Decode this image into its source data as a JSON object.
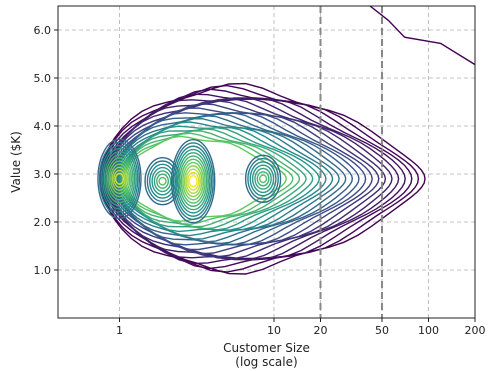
{
  "chart_data": {
    "type": "contour",
    "x_scale": "log",
    "xlim": [
      0.4,
      200
    ],
    "ylim": [
      0,
      6.5
    ],
    "xlabel": [
      "Customer Size",
      "(log scale)"
    ],
    "ylabel": "Value ($K)",
    "x_ticks": [
      {
        "value": 1,
        "label": "1"
      },
      {
        "value": 10,
        "label": "10"
      },
      {
        "value": 20,
        "label": "20"
      },
      {
        "value": 50,
        "label": "50"
      },
      {
        "value": 100,
        "label": "100"
      },
      {
        "value": 200,
        "label": "200"
      }
    ],
    "y_ticks": [
      {
        "value": 1.0,
        "label": "1.0"
      },
      {
        "value": 2.0,
        "label": "2.0"
      },
      {
        "value": 3.0,
        "label": "3.0"
      },
      {
        "value": 4.0,
        "label": "4.0"
      },
      {
        "value": 5.0,
        "label": "5.0"
      },
      {
        "value": 6.0,
        "label": "6.0"
      }
    ],
    "grid": true,
    "vertical_reference_lines": [
      20,
      50
    ],
    "density_peaks": [
      {
        "x": 1.0,
        "y": 2.9,
        "level": "high"
      },
      {
        "x": 1.9,
        "y": 2.85,
        "level": "medium"
      },
      {
        "x": 3.0,
        "y": 2.85,
        "level": "highest"
      },
      {
        "x": 8.5,
        "y": 2.9,
        "level": "medium"
      }
    ],
    "colormap": "viridis",
    "colors": {
      "low": "#440154",
      "mid": "#21918c",
      "high": "#fde725",
      "reference_line": "#888888",
      "grid": "#b0b0b0"
    }
  }
}
